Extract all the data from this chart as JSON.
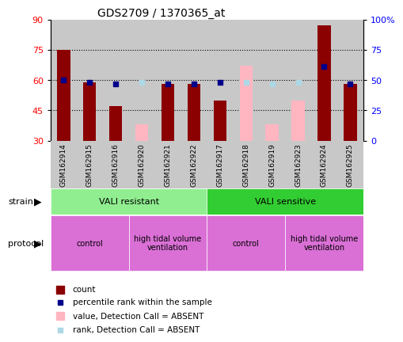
{
  "title": "GDS2709 / 1370365_at",
  "samples": [
    "GSM162914",
    "GSM162915",
    "GSM162916",
    "GSM162920",
    "GSM162921",
    "GSM162922",
    "GSM162917",
    "GSM162918",
    "GSM162919",
    "GSM162923",
    "GSM162924",
    "GSM162925"
  ],
  "count_values": [
    75,
    59,
    47,
    null,
    58,
    58,
    50,
    null,
    null,
    null,
    87,
    58
  ],
  "count_absent": [
    null,
    null,
    null,
    38,
    null,
    null,
    null,
    67,
    38,
    50,
    null,
    null
  ],
  "rank_present": [
    50,
    48,
    47,
    null,
    47,
    47,
    48,
    null,
    null,
    null,
    61,
    47
  ],
  "rank_absent": [
    null,
    null,
    null,
    48,
    null,
    null,
    null,
    48,
    47,
    48,
    null,
    null
  ],
  "ylim_left": [
    30,
    90
  ],
  "ylim_right": [
    0,
    100
  ],
  "yticks_left": [
    30,
    45,
    60,
    75,
    90
  ],
  "yticks_right": [
    0,
    25,
    50,
    75,
    100
  ],
  "ytick_labels_right": [
    "0",
    "25",
    "50",
    "75",
    "100%"
  ],
  "bar_color_present": "#8B0000",
  "bar_color_absent": "#FFB6C1",
  "rank_color_present": "#00008B",
  "rank_color_absent": "#ADD8E6",
  "bg_color": "#C8C8C8",
  "baseline": 30,
  "strain_resistant_color": "#90EE90",
  "strain_sensitive_color": "#32CD32",
  "protocol_color": "#DA70D6",
  "fig_bg": "#ffffff"
}
